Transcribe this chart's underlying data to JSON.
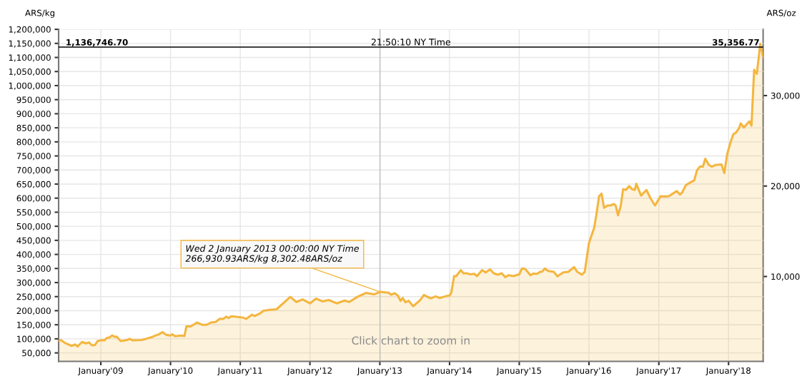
{
  "chart_data": {
    "type": "area",
    "ylabel": "ARS/kg",
    "y2label": "ARS/oz",
    "xlim": [
      "2008-05-25",
      "2018-07-01"
    ],
    "xticks": [
      {
        "value": "2009-01-01",
        "label": "January'09"
      },
      {
        "value": "2010-01-01",
        "label": "January'10"
      },
      {
        "value": "2011-01-01",
        "label": "January'11"
      },
      {
        "value": "2012-01-01",
        "label": "January'12"
      },
      {
        "value": "2013-01-01",
        "label": "January'13"
      },
      {
        "value": "2014-01-01",
        "label": "January'14"
      },
      {
        "value": "2015-01-01",
        "label": "January'15"
      },
      {
        "value": "2016-01-01",
        "label": "January'16"
      },
      {
        "value": "2017-01-01",
        "label": "January'17"
      },
      {
        "value": "2018-01-01",
        "label": "January'18"
      }
    ],
    "ylim": [
      20000,
      1200000
    ],
    "yticks": [
      {
        "value": 50000,
        "label": "50,000"
      },
      {
        "value": 100000,
        "label": "100,000"
      },
      {
        "value": 150000,
        "label": "150,000"
      },
      {
        "value": 200000,
        "label": "200,000"
      },
      {
        "value": 250000,
        "label": "250,000"
      },
      {
        "value": 300000,
        "label": "300,000"
      },
      {
        "value": 350000,
        "label": "350,000"
      },
      {
        "value": 400000,
        "label": "400,000"
      },
      {
        "value": 450000,
        "label": "450,000"
      },
      {
        "value": 500000,
        "label": "500,000"
      },
      {
        "value": 550000,
        "label": "550,000"
      },
      {
        "value": 600000,
        "label": "600,000"
      },
      {
        "value": 650000,
        "label": "650,000"
      },
      {
        "value": 700000,
        "label": "700,000"
      },
      {
        "value": 750000,
        "label": "750,000"
      },
      {
        "value": 800000,
        "label": "800,000"
      },
      {
        "value": 850000,
        "label": "850,000"
      },
      {
        "value": 900000,
        "label": "900,000"
      },
      {
        "value": 950000,
        "label": "950,000"
      },
      {
        "value": 1000000,
        "label": "1,000,000"
      },
      {
        "value": 1050000,
        "label": "1,050,000"
      },
      {
        "value": 1100000,
        "label": "1,100,000"
      },
      {
        "value": 1150000,
        "label": "1,150,000"
      },
      {
        "value": 1200000,
        "label": "1,200,000"
      }
    ],
    "y2lim": [
      622,
      37324
    ],
    "y2ticks": [
      {
        "value": 10000,
        "label": "10,000"
      },
      {
        "value": 20000,
        "label": "20,000"
      },
      {
        "value": 30000,
        "label": "30,000"
      }
    ],
    "grid": true,
    "legend": false,
    "series": [
      {
        "color": "#f4b63f",
        "x": [
          "2008-05-25",
          "2008-06-05",
          "2008-07-01",
          "2008-08-01",
          "2008-08-20",
          "2008-09-01",
          "2008-09-25",
          "2008-10-15",
          "2008-11-01",
          "2008-11-15",
          "2008-12-01",
          "2008-12-15",
          "2009-01-01",
          "2009-01-20",
          "2009-02-01",
          "2009-02-15",
          "2009-03-01",
          "2009-03-15",
          "2009-03-25",
          "2009-04-15",
          "2009-05-20",
          "2009-06-01",
          "2009-06-15",
          "2009-08-01",
          "2009-08-25",
          "2009-09-25",
          "2009-10-15",
          "2009-11-01",
          "2009-11-20",
          "2009-12-10",
          "2010-01-01",
          "2010-01-10",
          "2010-01-25",
          "2010-02-25",
          "2010-03-15",
          "2010-03-25",
          "2010-04-15",
          "2010-05-01",
          "2010-05-20",
          "2010-06-15",
          "2010-07-10",
          "2010-08-01",
          "2010-08-25",
          "2010-09-15",
          "2010-10-05",
          "2010-10-20",
          "2010-11-01",
          "2010-11-15",
          "2011-01-12",
          "2011-02-01",
          "2011-03-04",
          "2011-03-17",
          "2011-04-14",
          "2011-05-03",
          "2011-06-05",
          "2011-07-10",
          "2011-09-20",
          "2011-10-22",
          "2011-11-24",
          "2012-01-01",
          "2012-02-02",
          "2012-03-06",
          "2012-04-08",
          "2012-05-20",
          "2012-06-30",
          "2012-07-25",
          "2012-09-05",
          "2012-10-20",
          "2012-12-01",
          "2013-01-02",
          "2013-02-15",
          "2013-03-01",
          "2013-03-20",
          "2013-04-05",
          "2013-04-20",
          "2013-05-01",
          "2013-05-15",
          "2013-06-01",
          "2013-06-25",
          "2013-08-01",
          "2013-08-20",
          "2013-09-05",
          "2013-09-25",
          "2013-10-20",
          "2013-11-10",
          "2013-12-10",
          "2014-01-01",
          "2014-01-10",
          "2014-01-25",
          "2014-02-05",
          "2014-03-01",
          "2014-03-15",
          "2014-04-01",
          "2014-04-20",
          "2014-05-10",
          "2014-05-25",
          "2014-06-20",
          "2014-07-10",
          "2014-08-01",
          "2014-08-20",
          "2014-09-10",
          "2014-10-01",
          "2014-10-20",
          "2014-11-05",
          "2014-12-01",
          "2015-01-01",
          "2015-01-15",
          "2015-02-01",
          "2015-03-01",
          "2015-03-15",
          "2015-04-05",
          "2015-04-20",
          "2015-05-01",
          "2015-05-15",
          "2015-06-01",
          "2015-07-01",
          "2015-07-20",
          "2015-08-20",
          "2015-09-15",
          "2015-10-15",
          "2015-11-01",
          "2015-11-25",
          "2015-12-10",
          "2016-01-01",
          "2016-01-28",
          "2016-02-08",
          "2016-02-23",
          "2016-03-07",
          "2016-03-20",
          "2016-04-08",
          "2016-04-22",
          "2016-05-10",
          "2016-05-20",
          "2016-06-01",
          "2016-06-15",
          "2016-06-28",
          "2016-07-12",
          "2016-07-30",
          "2016-08-13",
          "2016-08-28",
          "2016-09-05",
          "2016-09-30",
          "2016-10-28",
          "2016-11-18",
          "2016-12-12",
          "2017-01-10",
          "2017-02-08",
          "2017-02-22",
          "2017-03-15",
          "2017-04-05",
          "2017-04-22",
          "2017-05-03",
          "2017-05-22",
          "2017-06-15",
          "2017-07-05",
          "2017-07-20",
          "2017-08-05",
          "2017-08-20",
          "2017-09-01",
          "2017-09-20",
          "2017-10-05",
          "2017-10-25",
          "2017-11-25",
          "2017-12-10",
          "2017-12-25",
          "2018-01-12",
          "2018-01-26",
          "2018-02-10",
          "2018-02-25",
          "2018-03-06",
          "2018-03-22",
          "2018-04-20",
          "2018-05-01",
          "2018-05-15",
          "2018-05-29",
          "2018-06-16",
          "2018-06-30"
        ],
        "values": [
          92000,
          96000,
          84000,
          75000,
          80000,
          73000,
          89000,
          84000,
          87000,
          77000,
          78000,
          92000,
          95000,
          95000,
          103000,
          105000,
          112000,
          107000,
          108000,
          92000,
          96000,
          100000,
          95000,
          96000,
          100000,
          106000,
          112000,
          116000,
          124000,
          114000,
          112000,
          116000,
          109000,
          112000,
          110000,
          144000,
          144000,
          150000,
          158000,
          150000,
          150000,
          158000,
          160000,
          171000,
          171000,
          179000,
          174000,
          180000,
          176000,
          171000,
          186000,
          181000,
          190000,
          200000,
          203000,
          205000,
          249000,
          231000,
          240000,
          226000,
          243000,
          233000,
          238000,
          226000,
          236000,
          231000,
          249000,
          263000,
          258000,
          267000,
          264000,
          257000,
          262000,
          254000,
          235000,
          245000,
          230000,
          235000,
          216000,
          238000,
          256000,
          250000,
          244000,
          251000,
          245000,
          251000,
          254000,
          264000,
          323000,
          323000,
          344000,
          333000,
          333000,
          329000,
          331000,
          323000,
          344000,
          336000,
          347000,
          333000,
          328000,
          333000,
          319000,
          326000,
          323000,
          329000,
          350000,
          348000,
          326000,
          332000,
          331000,
          338000,
          339000,
          350000,
          341000,
          338000,
          322000,
          336000,
          338000,
          355000,
          338000,
          328000,
          338000,
          441000,
          494000,
          537000,
          607000,
          616000,
          566000,
          574000,
          574000,
          579000,
          574000,
          539000,
          571000,
          632000,
          629000,
          643000,
          632000,
          629000,
          651000,
          609000,
          629000,
          600000,
          574000,
          607000,
          606000,
          607000,
          616000,
          625000,
          613000,
          620000,
          646000,
          656000,
          663000,
          699000,
          713000,
          712000,
          740000,
          718000,
          712000,
          718000,
          720000,
          689000,
          757000,
          800000,
          827000,
          834000,
          849000,
          866000,
          851000,
          873000,
          858000,
          1056000,
          1042000,
          1148000,
          1105000
        ]
      }
    ],
    "ref_lines": [
      {
        "axis": "y",
        "value": 1136746.7,
        "label": "1,136,746.70",
        "color": "#000000"
      },
      {
        "axis": "x",
        "value": "2013-01-02",
        "color": "#c0c0c0"
      }
    ],
    "annotations": [
      "21:50:10 NY Time",
      "35,356.77",
      "Click chart to zoom in",
      {
        "text": "Wed 2 January 2013 00:00:00 NY Time\n266,930.93ARS/kg 8,302.48ARS/oz",
        "x": "2013-01-02",
        "y": 266930.93
      }
    ]
  }
}
